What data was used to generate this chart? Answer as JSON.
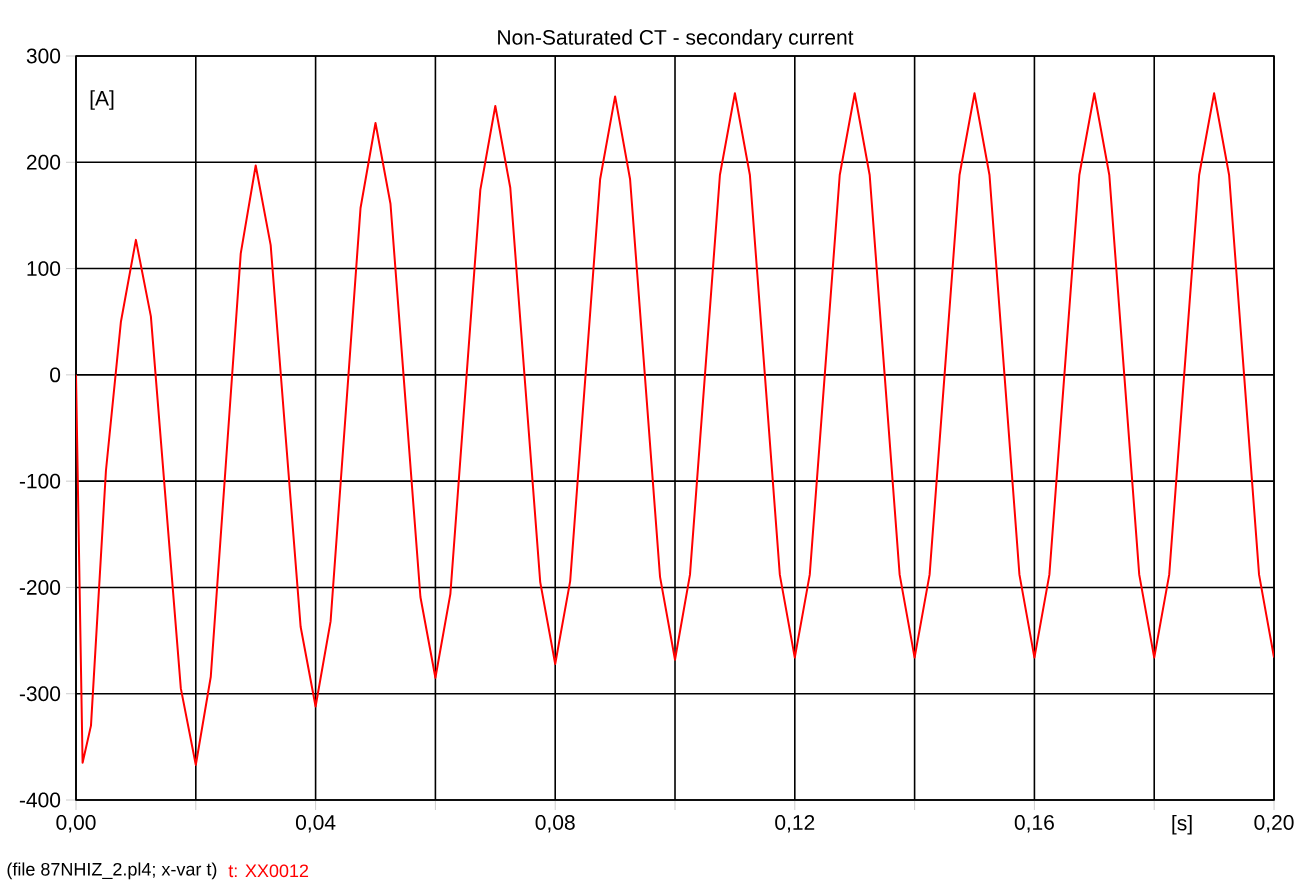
{
  "chart_data": {
    "type": "line",
    "title": "Non-Saturated CT - secondary current",
    "xlabel": "[s]",
    "ylabel": "[A]",
    "annotations": [
      "(file 87NHIZ_2.pl4; x-var t)"
    ],
    "xlim": [
      0,
      0.2
    ],
    "ylim": [
      -400,
      300
    ],
    "xticks": [
      {
        "value": 0,
        "label": "0,00"
      },
      {
        "value": 0.02,
        "label": null
      },
      {
        "value": 0.04,
        "label": "0,04"
      },
      {
        "value": 0.06,
        "label": null
      },
      {
        "value": 0.08,
        "label": "0,08"
      },
      {
        "value": 0.1,
        "label": null
      },
      {
        "value": 0.12,
        "label": "0,12"
      },
      {
        "value": 0.14,
        "label": null
      },
      {
        "value": 0.16,
        "label": "0,16"
      },
      {
        "value": 0.18,
        "label": null
      },
      {
        "value": 0.2,
        "label": "0,20"
      }
    ],
    "yticks": [
      -400,
      -300,
      -200,
      -100,
      0,
      100,
      200,
      300
    ],
    "grid": true,
    "line_style": "solid",
    "series": [
      {
        "name": "t: XX0012",
        "color": "#ff0000",
        "x": [
          0,
          0.0011,
          0.0025,
          0.005,
          0.0075,
          0.01,
          0.0125,
          0.015,
          0.0175,
          0.02,
          0.0225,
          0.025,
          0.0275,
          0.03,
          0.0325,
          0.035,
          0.0375,
          0.04,
          0.0425,
          0.045,
          0.0475,
          0.05,
          0.0525,
          0.055,
          0.0575,
          0.06,
          0.0625,
          0.065,
          0.0675,
          0.07,
          0.0725,
          0.075,
          0.0775,
          0.08,
          0.0825,
          0.085,
          0.0875,
          0.09,
          0.0925,
          0.095,
          0.0975,
          0.1,
          0.1025,
          0.105,
          0.1075,
          0.11,
          0.1125,
          0.115,
          0.1175,
          0.12,
          0.1225,
          0.125,
          0.1275,
          0.13,
          0.1325,
          0.135,
          0.1375,
          0.14,
          0.1425,
          0.145,
          0.1475,
          0.15,
          0.1525,
          0.155,
          0.1575,
          0.16,
          0.1625,
          0.165,
          0.1675,
          0.17,
          0.1725,
          0.175,
          0.1775,
          0.18,
          0.1825,
          0.185,
          0.1875,
          0.19,
          0.1925,
          0.195,
          0.1975,
          0.2
        ],
        "values": [
          0,
          -365,
          -330,
          -90,
          50,
          127,
          55,
          -120,
          -295,
          -367,
          -284,
          -85,
          114,
          197,
          122,
          -58,
          -237,
          -312,
          -232,
          -38,
          157,
          237,
          161,
          -24,
          -209,
          -285,
          -206,
          -16,
          174,
          253,
          176,
          -10,
          -195,
          -272,
          -194,
          -5,
          184,
          262,
          184,
          -3,
          -190,
          -268,
          -188,
          0,
          188,
          265,
          188,
          0,
          -188,
          -266,
          -188,
          0,
          188,
          265,
          188,
          0,
          -188,
          -266,
          -188,
          0,
          188,
          265,
          188,
          0,
          -188,
          -266,
          -188,
          0,
          188,
          265,
          188,
          0,
          -188,
          -266,
          -188,
          0,
          188,
          265,
          188,
          0,
          -188,
          -266
        ]
      }
    ]
  }
}
